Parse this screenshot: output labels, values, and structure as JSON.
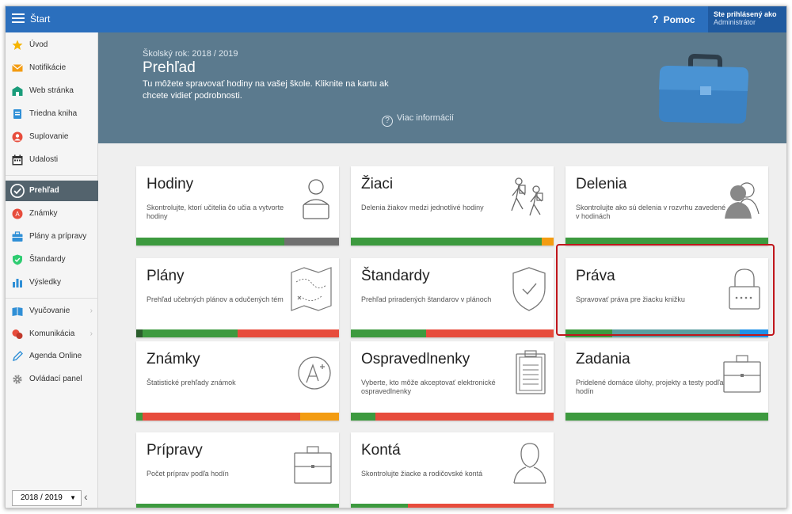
{
  "topbar": {
    "app_title": "Štart",
    "help_label": "Pomoc",
    "user_line1": "Ste prihlásený ako",
    "user_line2": "Administrátor"
  },
  "sidebar": {
    "items": [
      {
        "label": "Úvod",
        "icon": "star-icon"
      },
      {
        "label": "Notifikácie",
        "icon": "envelope-icon"
      },
      {
        "label": "Web stránka",
        "icon": "school-icon"
      },
      {
        "label": "Triedna kniha",
        "icon": "book-icon"
      },
      {
        "label": "Suplovanie",
        "icon": "person-icon"
      },
      {
        "label": "Udalosti",
        "icon": "calendar-icon"
      },
      {
        "label": "Prehľad",
        "icon": "check-circle-icon"
      },
      {
        "label": "Známky",
        "icon": "grade-icon"
      },
      {
        "label": "Plány a prípravy",
        "icon": "briefcase-icon"
      },
      {
        "label": "Štandardy",
        "icon": "shield-icon"
      },
      {
        "label": "Výsledky",
        "icon": "bar-chart-icon"
      },
      {
        "label": "Vyučovanie",
        "icon": "open-book-icon"
      },
      {
        "label": "Komunikácia",
        "icon": "chat-icon"
      },
      {
        "label": "Agenda Online",
        "icon": "pen-icon"
      },
      {
        "label": "Ovládací panel",
        "icon": "gear-icon"
      }
    ],
    "year_value": "2018 / 2019",
    "collapse_glyph": "‹"
  },
  "banner": {
    "school_year": "Školský rok: 2018 / 2019",
    "title": "Prehľad",
    "description": "Tu môžete spravovať hodiny na vašej škole. Kliknite na kartu ak chcete vidieť podrobnosti.",
    "more_label": "Viac informácií"
  },
  "cards": [
    {
      "title": "Hodiny",
      "desc": "Skontrolujte, ktorí učitelia čo učia a vytvorte hodiny",
      "icon": "teacher-icon",
      "bar": [
        {
          "c": "#3d9a3f",
          "p": 73
        },
        {
          "c": "#707070",
          "p": 27
        }
      ]
    },
    {
      "title": "Žiaci",
      "desc": "Delenia žiakov medzi jednotlivé hodiny",
      "icon": "hikers-icon",
      "bar": [
        {
          "c": "#3d9a3f",
          "p": 94
        },
        {
          "c": "#f39c12",
          "p": 6
        }
      ]
    },
    {
      "title": "Delenia",
      "desc": "Skontrolujte ako sú delenia v rozvrhu zavedené v hodinách",
      "icon": "users-icon",
      "bar": [
        {
          "c": "#3d9a3f",
          "p": 100
        }
      ]
    },
    {
      "title": "Plány",
      "desc": "Prehľad učebných plánov a odučených tém",
      "icon": "map-icon",
      "bar": [
        {
          "c": "#2b5e2d",
          "p": 3
        },
        {
          "c": "#3d9a3f",
          "p": 47
        },
        {
          "c": "#e74c3c",
          "p": 50
        }
      ]
    },
    {
      "title": "Štandardy",
      "desc": "Prehľad priradených štandarov v plánoch",
      "icon": "shield-check-icon",
      "bar": [
        {
          "c": "#3d9a3f",
          "p": 37
        },
        {
          "c": "#e74c3c",
          "p": 63
        }
      ]
    },
    {
      "title": "Práva",
      "desc": "Spravovať práva pre žiacku knižku",
      "icon": "lock-icon",
      "bar": [
        {
          "c": "#3d9a3f",
          "p": 23
        },
        {
          "c": "#5b9ea0",
          "p": 63
        },
        {
          "c": "#1e90e8",
          "p": 14
        }
      ]
    },
    {
      "title": "Známky",
      "desc": "Štatistické prehľady známok",
      "icon": "grade-a-icon",
      "bar": [
        {
          "c": "#3d9a3f",
          "p": 3
        },
        {
          "c": "#e74c3c",
          "p": 78
        },
        {
          "c": "#f39c12",
          "p": 19
        }
      ]
    },
    {
      "title": "Ospravedlnenky",
      "desc": "Vyberte, kto môže akceptovať elektronické ospravedlnenky",
      "icon": "clipboard-icon",
      "bar": [
        {
          "c": "#3d9a3f",
          "p": 12
        },
        {
          "c": "#e74c3c",
          "p": 88
        }
      ]
    },
    {
      "title": "Zadania",
      "desc": "Pridelené domáce úlohy, projekty a testy podľa hodín",
      "icon": "briefcase-icon",
      "bar": [
        {
          "c": "#3d9a3f",
          "p": 100
        }
      ]
    },
    {
      "title": "Prípravy",
      "desc": "Počet príprav podľa hodín",
      "icon": "briefcase-icon",
      "bar": [
        {
          "c": "#3d9a3f",
          "p": 100
        }
      ]
    },
    {
      "title": "Kontá",
      "desc": "Skontrolujte žiacke a rodičovské kontá",
      "icon": "user-icon",
      "bar": [
        {
          "c": "#3d9a3f",
          "p": 28
        },
        {
          "c": "#e74c3c",
          "p": 72
        }
      ]
    }
  ]
}
